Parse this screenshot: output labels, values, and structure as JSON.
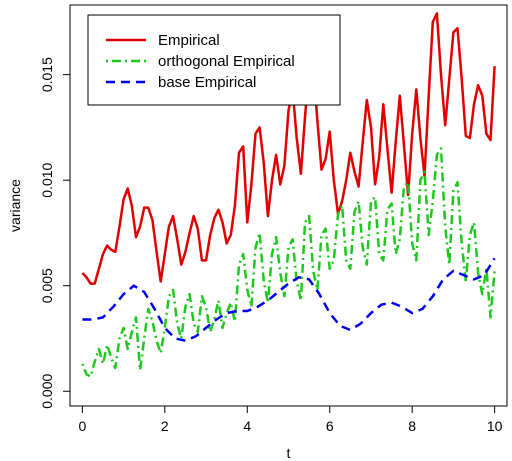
{
  "chart_data": {
    "type": "line",
    "xlabel": "t",
    "ylabel": "variance",
    "xlim": [
      -0.3,
      10.3
    ],
    "ylim": [
      -0.0007,
      0.0183
    ],
    "x_ticks": [
      0,
      2,
      4,
      6,
      8,
      10
    ],
    "x_tick_labels": [
      "0",
      "2",
      "4",
      "6",
      "8",
      "10"
    ],
    "y_ticks": [
      0.0,
      0.005,
      0.01,
      0.015
    ],
    "y_tick_labels": [
      "0.000",
      "0.005",
      "0.010",
      "0.015"
    ],
    "legend_position": "top-left",
    "series": [
      {
        "name": "Empirical",
        "color": "#e00000",
        "dash": "solid",
        "x": [
          0,
          0.1,
          0.2,
          0.3,
          0.4,
          0.5,
          0.6,
          0.7,
          0.8,
          0.9,
          1.0,
          1.1,
          1.2,
          1.3,
          1.4,
          1.5,
          1.6,
          1.7,
          1.8,
          1.9,
          2.0,
          2.1,
          2.2,
          2.3,
          2.4,
          2.5,
          2.6,
          2.7,
          2.8,
          2.9,
          3.0,
          3.1,
          3.2,
          3.3,
          3.4,
          3.5,
          3.6,
          3.7,
          3.8,
          3.9,
          4.0,
          4.1,
          4.2,
          4.3,
          4.4,
          4.5,
          4.6,
          4.7,
          4.8,
          4.9,
          5.0,
          5.1,
          5.2,
          5.3,
          5.4,
          5.5,
          5.6,
          5.7,
          5.8,
          5.9,
          6.0,
          6.1,
          6.2,
          6.3,
          6.4,
          6.5,
          6.6,
          6.7,
          6.8,
          6.9,
          7.0,
          7.1,
          7.2,
          7.3,
          7.4,
          7.5,
          7.6,
          7.7,
          7.8,
          7.9,
          8.0,
          8.1,
          8.2,
          8.3,
          8.4,
          8.5,
          8.6,
          8.7,
          8.8,
          8.9,
          9.0,
          9.1,
          9.2,
          9.3,
          9.4,
          9.5,
          9.6,
          9.7,
          9.8,
          9.9,
          10.0
        ],
        "y": [
          0.0056,
          0.0054,
          0.0051,
          0.0051,
          0.0058,
          0.0065,
          0.0069,
          0.0067,
          0.0066,
          0.0078,
          0.0091,
          0.0096,
          0.0088,
          0.0073,
          0.0078,
          0.0087,
          0.0087,
          0.0081,
          0.0066,
          0.0052,
          0.0065,
          0.0078,
          0.0083,
          0.0072,
          0.006,
          0.0066,
          0.0075,
          0.0083,
          0.0077,
          0.0062,
          0.0062,
          0.0074,
          0.0082,
          0.0086,
          0.008,
          0.007,
          0.0074,
          0.0088,
          0.0113,
          0.0116,
          0.008,
          0.0098,
          0.0122,
          0.0125,
          0.0108,
          0.0083,
          0.01,
          0.0112,
          0.0098,
          0.0107,
          0.0133,
          0.0143,
          0.012,
          0.0103,
          0.013,
          0.0153,
          0.0155,
          0.0128,
          0.0105,
          0.011,
          0.0123,
          0.01,
          0.0084,
          0.009,
          0.01,
          0.0113,
          0.0104,
          0.0097,
          0.0118,
          0.0138,
          0.0125,
          0.0098,
          0.0111,
          0.0136,
          0.0115,
          0.0094,
          0.0118,
          0.014,
          0.0117,
          0.0093,
          0.0122,
          0.0143,
          0.012,
          0.0102,
          0.014,
          0.0175,
          0.0179,
          0.015,
          0.0126,
          0.0148,
          0.017,
          0.0172,
          0.0148,
          0.0121,
          0.012,
          0.0136,
          0.0145,
          0.014,
          0.0122,
          0.0119,
          0.0154
        ]
      },
      {
        "name": "orthogonal Empirical",
        "color": "#1ec81e",
        "dash": "dotdash",
        "x": [
          0,
          0.1,
          0.2,
          0.3,
          0.4,
          0.5,
          0.6,
          0.7,
          0.8,
          0.9,
          1.0,
          1.1,
          1.2,
          1.3,
          1.4,
          1.5,
          1.6,
          1.7,
          1.8,
          1.9,
          2.0,
          2.1,
          2.2,
          2.3,
          2.4,
          2.5,
          2.6,
          2.7,
          2.8,
          2.9,
          3.0,
          3.1,
          3.2,
          3.3,
          3.4,
          3.5,
          3.6,
          3.7,
          3.8,
          3.9,
          4.0,
          4.1,
          4.2,
          4.3,
          4.4,
          4.5,
          4.6,
          4.7,
          4.8,
          4.9,
          5.0,
          5.1,
          5.2,
          5.3,
          5.4,
          5.5,
          5.6,
          5.7,
          5.8,
          5.9,
          6.0,
          6.1,
          6.2,
          6.3,
          6.4,
          6.5,
          6.6,
          6.7,
          6.8,
          6.9,
          7.0,
          7.1,
          7.2,
          7.3,
          7.4,
          7.5,
          7.6,
          7.7,
          7.8,
          7.9,
          8.0,
          8.1,
          8.2,
          8.3,
          8.4,
          8.5,
          8.6,
          8.7,
          8.8,
          8.9,
          9.0,
          9.1,
          9.2,
          9.3,
          9.4,
          9.5,
          9.6,
          9.7,
          9.8,
          9.9,
          10.0
        ],
        "y": [
          0.0013,
          0.0008,
          0.0007,
          0.0014,
          0.002,
          0.0013,
          0.0022,
          0.0016,
          0.0011,
          0.0025,
          0.003,
          0.002,
          0.0028,
          0.0035,
          0.001,
          0.0025,
          0.0039,
          0.0033,
          0.0024,
          0.0018,
          0.003,
          0.0045,
          0.0048,
          0.0032,
          0.0025,
          0.004,
          0.0046,
          0.0032,
          0.0028,
          0.0045,
          0.004,
          0.0028,
          0.0034,
          0.0043,
          0.003,
          0.0037,
          0.0042,
          0.0033,
          0.006,
          0.0065,
          0.0048,
          0.004,
          0.0068,
          0.0075,
          0.0052,
          0.0042,
          0.0065,
          0.0073,
          0.0056,
          0.0045,
          0.0068,
          0.0072,
          0.0052,
          0.0043,
          0.008,
          0.0083,
          0.0057,
          0.0048,
          0.0074,
          0.0077,
          0.0058,
          0.0062,
          0.0084,
          0.0088,
          0.0062,
          0.0058,
          0.0085,
          0.009,
          0.0068,
          0.006,
          0.009,
          0.0092,
          0.0065,
          0.0062,
          0.0086,
          0.0089,
          0.0065,
          0.0072,
          0.0097,
          0.0099,
          0.007,
          0.0062,
          0.01,
          0.0104,
          0.0074,
          0.009,
          0.0112,
          0.0115,
          0.0078,
          0.006,
          0.0095,
          0.0099,
          0.007,
          0.0052,
          0.0074,
          0.008,
          0.0056,
          0.0046,
          0.0058,
          0.0035,
          0.0057
        ]
      },
      {
        "name": "base Empirical",
        "color": "#0000ee",
        "dash": "dashed",
        "x": [
          0,
          0.25,
          0.5,
          0.75,
          1.0,
          1.25,
          1.5,
          1.75,
          2.0,
          2.25,
          2.5,
          2.75,
          3.0,
          3.25,
          3.5,
          3.75,
          4.0,
          4.25,
          4.5,
          4.75,
          5.0,
          5.25,
          5.5,
          5.75,
          6.0,
          6.25,
          6.5,
          6.75,
          7.0,
          7.25,
          7.5,
          7.75,
          8.0,
          8.25,
          8.5,
          8.75,
          9.0,
          9.25,
          9.5,
          9.75,
          10.0
        ],
        "y": [
          0.0034,
          0.0034,
          0.0035,
          0.004,
          0.0046,
          0.005,
          0.0047,
          0.0039,
          0.003,
          0.0025,
          0.0024,
          0.0026,
          0.003,
          0.0034,
          0.0037,
          0.0038,
          0.0038,
          0.004,
          0.0043,
          0.0047,
          0.0051,
          0.0054,
          0.0053,
          0.0046,
          0.0037,
          0.0031,
          0.0029,
          0.0032,
          0.0037,
          0.0041,
          0.0042,
          0.004,
          0.0037,
          0.0039,
          0.0045,
          0.0053,
          0.0057,
          0.0055,
          0.0053,
          0.0055,
          0.0063
        ]
      }
    ]
  }
}
